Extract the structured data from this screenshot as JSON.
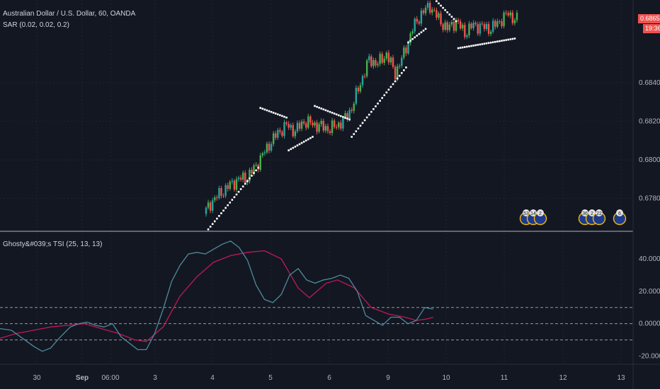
{
  "header": {
    "symbol_line": "Australian Dollar / U.S. Dollar, 60, OANDA",
    "sar_line": "SAR (0.02, 0.02, 0.2)",
    "tsi_line": "Ghosty&#039;s TSI (25, 13, 13)"
  },
  "price_tags": {
    "last_price": "0.68653",
    "countdown": "19:36",
    "color": "#ef5350"
  },
  "colors": {
    "background": "#131722",
    "up_candle": "#26a69a",
    "up_candle_bright": "#4caf50",
    "down_candle": "#ef5350",
    "sar_dots": "#ffffff",
    "tsi_line": "#4f8a9e",
    "signal_line": "#c2185b",
    "grid": "#1e2433",
    "separator": "#b2b5be"
  },
  "events": {
    "group1": [
      "53",
      "14",
      "2"
    ],
    "group2": [
      "36",
      "2",
      "22"
    ],
    "group3": [
      "6"
    ]
  },
  "chart_data": [
    {
      "type": "candlestick",
      "title": "Australian Dollar / U.S. Dollar, 60, OANDA",
      "y_ticks": [
        "0.67800",
        "0.68000",
        "0.68200",
        "0.68400"
      ],
      "ylim": [
        0.6763,
        0.6883
      ],
      "x_ticks": [
        "30",
        "Sep",
        "06:00",
        "3",
        "4",
        "5",
        "6",
        "9",
        "10",
        "11",
        "12",
        "13"
      ],
      "grid": true,
      "price_path": [
        [
          0,
          0.6772
        ],
        [
          4,
          0.6779
        ],
        [
          8,
          0.6783
        ],
        [
          12,
          0.6787
        ],
        [
          16,
          0.679
        ],
        [
          20,
          0.6791
        ],
        [
          24,
          0.6797
        ],
        [
          30,
          0.6808
        ],
        [
          34,
          0.6814
        ],
        [
          38,
          0.6818
        ],
        [
          42,
          0.6815
        ],
        [
          46,
          0.682
        ],
        [
          52,
          0.6818
        ],
        [
          58,
          0.6816
        ],
        [
          64,
          0.682
        ],
        [
          68,
          0.6827
        ],
        [
          72,
          0.684
        ],
        [
          76,
          0.6852
        ],
        [
          80,
          0.685
        ],
        [
          84,
          0.6855
        ],
        [
          88,
          0.6845
        ],
        [
          92,
          0.6855
        ],
        [
          96,
          0.6868
        ],
        [
          100,
          0.6876
        ],
        [
          104,
          0.688
        ],
        [
          108,
          0.6873
        ],
        [
          112,
          0.6868
        ],
        [
          116,
          0.6872
        ],
        [
          120,
          0.6866
        ],
        [
          124,
          0.687
        ],
        [
          128,
          0.6869
        ],
        [
          132,
          0.6868
        ],
        [
          136,
          0.6872
        ],
        [
          140,
          0.6876
        ],
        [
          143,
          0.6873
        ]
      ],
      "sar_segments": [
        {
          "start": 1,
          "end": 24,
          "from": 0.6764,
          "to": 0.6796,
          "side": "below"
        },
        {
          "start": 25,
          "end": 37,
          "from": 0.6827,
          "to": 0.6822,
          "side": "above"
        },
        {
          "start": 38,
          "end": 49,
          "from": 0.6805,
          "to": 0.6812,
          "side": "below"
        },
        {
          "start": 50,
          "end": 66,
          "from": 0.6828,
          "to": 0.6821,
          "side": "above"
        },
        {
          "start": 67,
          "end": 92,
          "from": 0.6812,
          "to": 0.6848,
          "side": "below"
        },
        {
          "start": 93,
          "end": 101,
          "from": 0.6861,
          "to": 0.6868,
          "side": "below"
        },
        {
          "start": 102,
          "end": 115,
          "from": 0.6887,
          "to": 0.6872,
          "side": "above"
        },
        {
          "start": 116,
          "end": 142,
          "from": 0.6858,
          "to": 0.6863,
          "side": "below"
        }
      ]
    },
    {
      "type": "line",
      "title": "Ghosty&#039;s TSI (25, 13, 13)",
      "y_ticks": [
        "40.0000",
        "20.0000",
        "0.0000",
        "-20.0000"
      ],
      "ylim": [
        -25,
        57
      ],
      "reference_levels": [
        10,
        0,
        -10
      ],
      "x_range": [
        0,
        180
      ],
      "series": [
        {
          "key": "tsi",
          "points": [
            [
              0,
              -3
            ],
            [
              4,
              -4
            ],
            [
              8,
              -9
            ],
            [
              12,
              -14
            ],
            [
              15,
              -17
            ],
            [
              18,
              -15
            ],
            [
              21,
              -9
            ],
            [
              25,
              -2
            ],
            [
              28,
              0
            ],
            [
              31,
              1
            ],
            [
              34,
              -1
            ],
            [
              37,
              -2
            ],
            [
              40,
              0
            ],
            [
              43,
              -8
            ],
            [
              46,
              -12
            ],
            [
              49,
              -16
            ],
            [
              52,
              -16
            ],
            [
              55,
              -6
            ],
            [
              58,
              9
            ],
            [
              61,
              26
            ],
            [
              64,
              36
            ],
            [
              67,
              43
            ],
            [
              70,
              44
            ],
            [
              73,
              43
            ],
            [
              76,
              46
            ],
            [
              79,
              49
            ],
            [
              82,
              51
            ],
            [
              85,
              47
            ],
            [
              88,
              39
            ],
            [
              91,
              24
            ],
            [
              94,
              15
            ],
            [
              97,
              13
            ],
            [
              100,
              18
            ],
            [
              103,
              30
            ],
            [
              106,
              34
            ],
            [
              109,
              27
            ],
            [
              112,
              25
            ],
            [
              115,
              27
            ],
            [
              118,
              28
            ],
            [
              121,
              30
            ],
            [
              124,
              28
            ],
            [
              127,
              20
            ],
            [
              130,
              5
            ],
            [
              133,
              2
            ],
            [
              136,
              -1
            ],
            [
              139,
              4
            ],
            [
              142,
              4
            ],
            [
              145,
              0
            ],
            [
              148,
              2
            ],
            [
              151,
              10
            ],
            [
              154,
              9
            ]
          ]
        },
        {
          "key": "signal",
          "points": [
            [
              0,
              -9
            ],
            [
              6,
              -6
            ],
            [
              12,
              -4
            ],
            [
              18,
              -2
            ],
            [
              24,
              -1
            ],
            [
              30,
              0
            ],
            [
              36,
              -3
            ],
            [
              42,
              -6
            ],
            [
              48,
              -10
            ],
            [
              52,
              -11
            ],
            [
              58,
              -2
            ],
            [
              64,
              17
            ],
            [
              70,
              29
            ],
            [
              76,
              38
            ],
            [
              82,
              42
            ],
            [
              88,
              44
            ],
            [
              94,
              45
            ],
            [
              100,
              40
            ],
            [
              106,
              22
            ],
            [
              110,
              16
            ],
            [
              116,
              25
            ],
            [
              120,
              27
            ],
            [
              126,
              22
            ],
            [
              132,
              10
            ],
            [
              138,
              6
            ],
            [
              144,
              4
            ],
            [
              148,
              2
            ],
            [
              152,
              3
            ],
            [
              154,
              4
            ]
          ]
        }
      ]
    }
  ]
}
